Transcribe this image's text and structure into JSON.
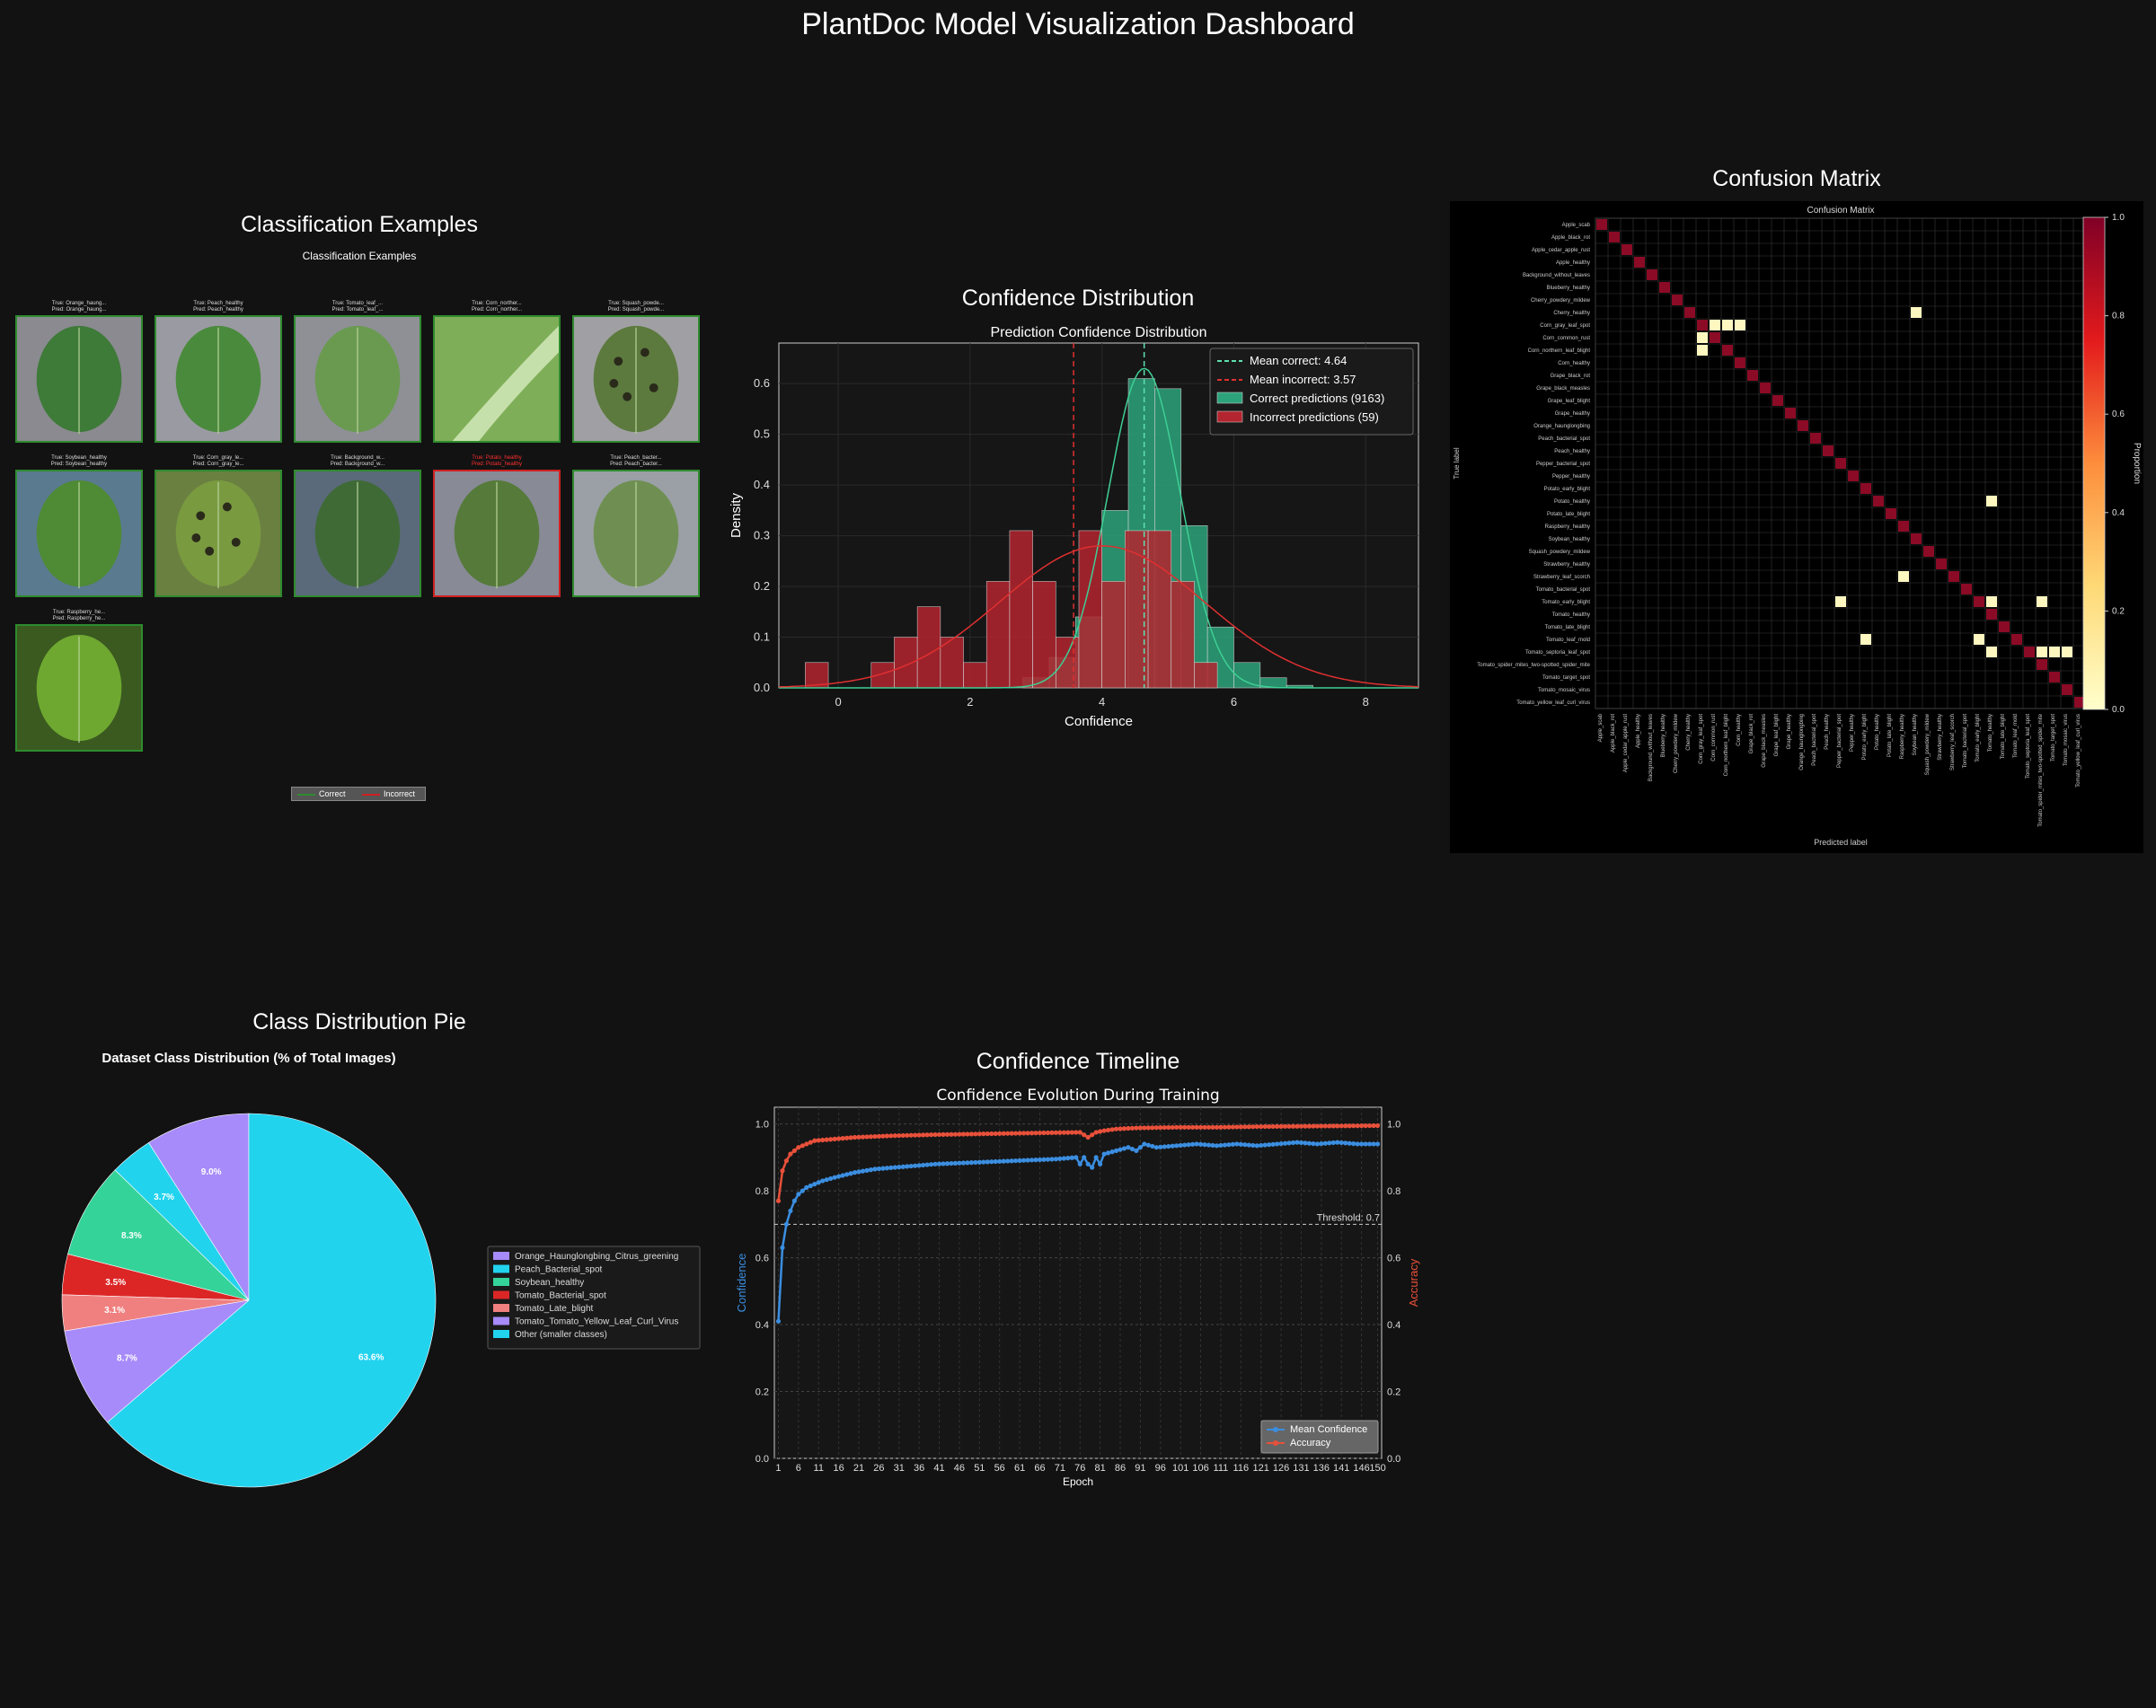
{
  "title": "PlantDoc Model Visualization Dashboard",
  "panels": {
    "examples": "Classification Examples",
    "confidence": "Confidence Distribution",
    "confusion": "Confusion Matrix",
    "pie": "Class Distribution Pie",
    "timeline": "Confidence Timeline"
  },
  "examples": {
    "inner_title": "Classification Examples",
    "items": [
      {
        "true": "True: Orange_haung...",
        "pred": "Pred: Orange_haung...",
        "correct": true
      },
      {
        "true": "True: Peach_healthy",
        "pred": "Pred: Peach_healthy",
        "correct": true
      },
      {
        "true": "True: Tomato_leaf_...",
        "pred": "Pred: Tomato_leaf_...",
        "correct": true
      },
      {
        "true": "True: Corn_norther...",
        "pred": "Pred: Corn_norther...",
        "correct": true
      },
      {
        "true": "True: Squash_powde...",
        "pred": "Pred: Squash_powde...",
        "correct": true
      },
      {
        "true": "True: Soybean_healthy",
        "pred": "Pred: Soybean_healthy",
        "correct": true
      },
      {
        "true": "True: Corn_gray_le...",
        "pred": "Pred: Corn_gray_le...",
        "correct": true
      },
      {
        "true": "True: Background_w...",
        "pred": "Pred: Background_w...",
        "correct": true
      },
      {
        "true": "True: Potato_healthy",
        "pred": "Pred: Potato_healthy",
        "correct": false
      },
      {
        "true": "True: Peach_bacter...",
        "pred": "Pred: Peach_bacter...",
        "correct": true
      },
      {
        "true": "True: Raspberry_he...",
        "pred": "Pred: Raspberry_he...",
        "correct": true
      }
    ],
    "legend": {
      "correct": "Correct",
      "incorrect": "Incorrect"
    }
  },
  "chart_data": [
    {
      "type": "bar",
      "title": "Prediction Confidence Distribution",
      "xlabel": "Confidence",
      "ylabel": "Density",
      "xlim": [
        -0.9,
        8.8
      ],
      "ylim": [
        0,
        0.68
      ],
      "xticks": [
        0,
        2,
        4,
        6,
        8
      ],
      "yticks": [
        0.0,
        0.1,
        0.2,
        0.3,
        0.4,
        0.5,
        0.6
      ],
      "legend": [
        "Mean correct: 4.64",
        "Mean incorrect: 3.57",
        "Correct predictions (9163)",
        "Incorrect predictions (59)"
      ],
      "mean_correct": 4.64,
      "mean_incorrect": 3.57,
      "series": [
        {
          "name": "Correct predictions (9163)",
          "color": "#2ca37a",
          "bins": [
            [
              2.8,
              3.2,
              0.02
            ],
            [
              3.2,
              3.6,
              0.06
            ],
            [
              3.6,
              4.0,
              0.14
            ],
            [
              4.0,
              4.4,
              0.35
            ],
            [
              4.4,
              4.8,
              0.61
            ],
            [
              4.8,
              5.2,
              0.59
            ],
            [
              5.2,
              5.6,
              0.32
            ],
            [
              5.6,
              6.0,
              0.12
            ],
            [
              6.0,
              6.4,
              0.05
            ],
            [
              6.4,
              6.8,
              0.02
            ],
            [
              6.8,
              7.2,
              0.005
            ]
          ]
        },
        {
          "name": "Incorrect predictions (59)",
          "color": "#b3252f",
          "bins": [
            [
              -0.5,
              -0.15,
              0.05
            ],
            [
              0.5,
              0.85,
              0.05
            ],
            [
              0.85,
              1.2,
              0.1
            ],
            [
              1.2,
              1.55,
              0.16
            ],
            [
              1.55,
              1.9,
              0.1
            ],
            [
              1.9,
              2.25,
              0.05
            ],
            [
              2.25,
              2.6,
              0.21
            ],
            [
              2.6,
              2.95,
              0.31
            ],
            [
              2.95,
              3.3,
              0.21
            ],
            [
              3.3,
              3.65,
              0.1
            ],
            [
              3.65,
              4.0,
              0.31
            ],
            [
              4.0,
              4.35,
              0.21
            ],
            [
              4.35,
              4.7,
              0.31
            ],
            [
              4.7,
              5.05,
              0.31
            ],
            [
              5.05,
              5.4,
              0.21
            ],
            [
              5.4,
              5.75,
              0.05
            ]
          ]
        }
      ]
    },
    {
      "type": "heatmap",
      "title": "Confusion Matrix",
      "xlabel": "Predicted label",
      "ylabel": "True label",
      "colorbar_label": "Proportion",
      "colorbar_ticks": [
        0.0,
        0.2,
        0.4,
        0.6,
        0.8,
        1.0
      ],
      "labels": [
        "Apple_scab",
        "Apple_black_rot",
        "Apple_cedar_apple_rust",
        "Apple_healthy",
        "Background_without_leaves",
        "Blueberry_healthy",
        "Cherry_powdery_mildew",
        "Cherry_healthy",
        "Corn_gray_leaf_spot",
        "Corn_common_rust",
        "Corn_northern_leaf_blight",
        "Corn_healthy",
        "Grape_black_rot",
        "Grape_black_measles",
        "Grape_leaf_blight",
        "Grape_healthy",
        "Orange_haunglongbing",
        "Peach_bacterial_spot",
        "Peach_healthy",
        "Pepper_bacterial_spot",
        "Pepper_healthy",
        "Potato_early_blight",
        "Potato_healthy",
        "Potato_late_blight",
        "Raspberry_healthy",
        "Soybean_healthy",
        "Squash_powdery_mildew",
        "Strawberry_healthy",
        "Strawberry_leaf_scorch",
        "Tomato_bacterial_spot",
        "Tomato_early_blight",
        "Tomato_healthy",
        "Tomato_late_blight",
        "Tomato_leaf_mold",
        "Tomato_septoria_leaf_spot",
        "Tomato_spider_mites_two-spotted_spider_mite",
        "Tomato_target_spot",
        "Tomato_mosaic_virus",
        "Tomato_yellow_leaf_curl_virus"
      ],
      "diagonal": 1.0,
      "off_diagonal": [
        [
          7,
          25,
          0.02
        ],
        [
          8,
          9,
          0.03
        ],
        [
          8,
          10,
          0.03
        ],
        [
          8,
          11,
          0.03
        ],
        [
          9,
          8,
          0.02
        ],
        [
          10,
          8,
          0.02
        ],
        [
          22,
          31,
          0.02
        ],
        [
          28,
          24,
          0.03
        ],
        [
          30,
          19,
          0.02
        ],
        [
          30,
          31,
          0.02
        ],
        [
          30,
          35,
          0.02
        ],
        [
          33,
          21,
          0.02
        ],
        [
          33,
          30,
          0.02
        ],
        [
          34,
          31,
          0.02
        ],
        [
          34,
          35,
          0.02
        ],
        [
          34,
          36,
          0.02
        ],
        [
          34,
          37,
          0.02
        ]
      ]
    },
    {
      "type": "pie",
      "title": "Dataset Class Distribution (% of Total Images)",
      "slices": [
        {
          "label": "Orange_Haunglongbing_Citrus_greening",
          "value": 9.0,
          "color": "#a78bfa"
        },
        {
          "label": "Peach_Bacterial_spot",
          "value": 3.7,
          "color": "#22d3ee"
        },
        {
          "label": "Soybean_healthy",
          "value": 8.3,
          "color": "#34d399"
        },
        {
          "label": "Tomato_Bacterial_spot",
          "value": 3.5,
          "color": "#dc2626"
        },
        {
          "label": "Tomato_Late_blight",
          "value": 3.1,
          "color": "#f08080"
        },
        {
          "label": "Tomato_Tomato_Yellow_Leaf_Curl_Virus",
          "value": 8.7,
          "color": "#a78bfa"
        },
        {
          "label": "Other (smaller classes)",
          "value": 63.6,
          "color": "#22d3ee"
        }
      ],
      "value_labels": [
        "9.0%",
        "3.7%",
        "8.3%",
        "3.5%",
        "3.1%",
        "8.7%",
        "63.6%"
      ]
    },
    {
      "type": "line",
      "title": "Confidence Evolution During Training",
      "xlabel": "Epoch",
      "ylabel": "Confidence",
      "y2label": "Accuracy",
      "xlim": [
        0,
        151
      ],
      "ylim": [
        0,
        1.05
      ],
      "xticks": [
        1,
        6,
        11,
        16,
        21,
        26,
        31,
        36,
        41,
        46,
        51,
        56,
        61,
        66,
        71,
        76,
        81,
        86,
        91,
        96,
        101,
        106,
        111,
        116,
        121,
        126,
        131,
        136,
        141,
        146,
        150
      ],
      "yticks": [
        0.0,
        0.2,
        0.4,
        0.6,
        0.8,
        1.0
      ],
      "threshold": 0.7,
      "threshold_label": "Threshold: 0.7",
      "legend": [
        "Mean Confidence",
        "Accuracy"
      ],
      "series": [
        {
          "name": "Mean Confidence",
          "color": "#3b8ee0",
          "points": [
            [
              1,
              0.41
            ],
            [
              2,
              0.63
            ],
            [
              3,
              0.7
            ],
            [
              4,
              0.74
            ],
            [
              5,
              0.77
            ],
            [
              6,
              0.79
            ],
            [
              7,
              0.8
            ],
            [
              8,
              0.81
            ],
            [
              10,
              0.82
            ],
            [
              12,
              0.83
            ],
            [
              15,
              0.84
            ],
            [
              20,
              0.855
            ],
            [
              25,
              0.865
            ],
            [
              30,
              0.87
            ],
            [
              40,
              0.88
            ],
            [
              50,
              0.885
            ],
            [
              60,
              0.89
            ],
            [
              70,
              0.895
            ],
            [
              75,
              0.9
            ],
            [
              76,
              0.88
            ],
            [
              77,
              0.9
            ],
            [
              78,
              0.88
            ],
            [
              79,
              0.87
            ],
            [
              80,
              0.9
            ],
            [
              81,
              0.88
            ],
            [
              82,
              0.91
            ],
            [
              85,
              0.92
            ],
            [
              88,
              0.93
            ],
            [
              90,
              0.92
            ],
            [
              92,
              0.94
            ],
            [
              95,
              0.93
            ],
            [
              100,
              0.935
            ],
            [
              105,
              0.94
            ],
            [
              110,
              0.935
            ],
            [
              115,
              0.94
            ],
            [
              120,
              0.935
            ],
            [
              125,
              0.94
            ],
            [
              130,
              0.945
            ],
            [
              135,
              0.94
            ],
            [
              140,
              0.945
            ],
            [
              145,
              0.94
            ],
            [
              150,
              0.94
            ]
          ]
        },
        {
          "name": "Accuracy",
          "color": "#e8503a",
          "points": [
            [
              1,
              0.77
            ],
            [
              2,
              0.86
            ],
            [
              3,
              0.89
            ],
            [
              4,
              0.91
            ],
            [
              5,
              0.92
            ],
            [
              6,
              0.93
            ],
            [
              8,
              0.94
            ],
            [
              10,
              0.95
            ],
            [
              15,
              0.955
            ],
            [
              20,
              0.96
            ],
            [
              30,
              0.965
            ],
            [
              40,
              0.968
            ],
            [
              50,
              0.97
            ],
            [
              60,
              0.972
            ],
            [
              70,
              0.974
            ],
            [
              76,
              0.975
            ],
            [
              78,
              0.96
            ],
            [
              80,
              0.975
            ],
            [
              82,
              0.98
            ],
            [
              85,
              0.985
            ],
            [
              90,
              0.988
            ],
            [
              100,
              0.99
            ],
            [
              110,
              0.99
            ],
            [
              120,
              0.992
            ],
            [
              130,
              0.993
            ],
            [
              140,
              0.994
            ],
            [
              150,
              0.995
            ]
          ]
        }
      ]
    }
  ]
}
